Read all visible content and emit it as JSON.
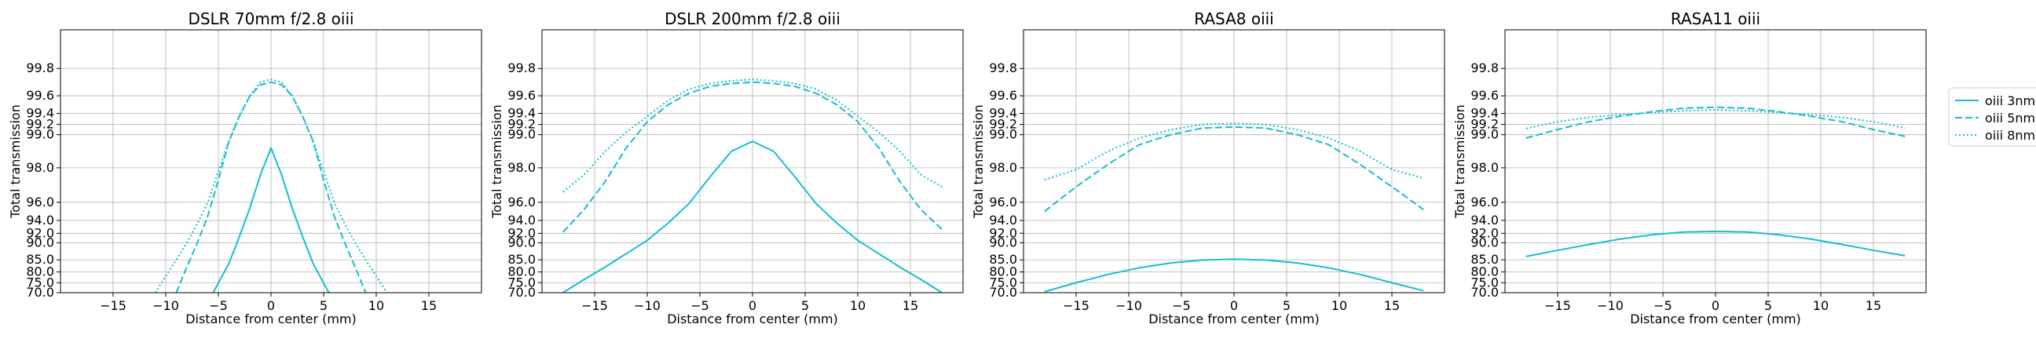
{
  "chart_data": [
    {
      "type": "line",
      "title": "DSLR 70mm f/2.8 oiii",
      "xlabel": "Distance from center (mm)",
      "ylabel": "Total transmission",
      "xlim": [
        -20,
        20
      ],
      "ylim": [
        70.0,
        100.0
      ],
      "xticks": [
        -15,
        -10,
        -5,
        0,
        5,
        10,
        15
      ],
      "yticks": [
        70.0,
        75.0,
        80.0,
        85.0,
        90.0,
        92.0,
        94.0,
        96.0,
        98.0,
        99.0,
        99.2,
        99.4,
        99.6,
        99.8
      ],
      "y_scale": "expanded toward 100 (tick spacing widens near 100)",
      "grid": true,
      "series": [
        {
          "name": "oiii 3nm",
          "style": "solid",
          "x": [
            -5.5,
            -4,
            -3,
            -2,
            -1,
            0,
            1,
            2,
            3,
            4,
            5.5
          ],
          "y": [
            70.0,
            83.5,
            91.3,
            95.4,
            97.6,
            98.6,
            97.6,
            95.4,
            91.3,
            83.5,
            70.0
          ]
        },
        {
          "name": "oiii 5nm",
          "style": "dashed",
          "x": [
            -9,
            -8,
            -7,
            -6,
            -5,
            -4,
            -3,
            -2,
            -1,
            0,
            1,
            2,
            3,
            4,
            5,
            6,
            7,
            8,
            9
          ],
          "y": [
            70.0,
            82.0,
            90.0,
            94.5,
            97.3,
            98.8,
            99.35,
            99.6,
            99.68,
            99.7,
            99.68,
            99.6,
            99.35,
            98.8,
            97.3,
            94.5,
            90.0,
            82.0,
            70.0
          ]
        },
        {
          "name": "oiii 8nm",
          "style": "dotted",
          "x": [
            -11,
            -10,
            -9,
            -8,
            -7,
            -6,
            -5,
            -4,
            -3,
            -2,
            -1,
            0,
            1,
            2,
            3,
            4,
            5,
            6,
            7,
            8,
            9,
            10,
            11
          ],
          "y": [
            70.0,
            78.0,
            85.0,
            90.0,
            93.5,
            96.0,
            97.8,
            98.8,
            99.35,
            99.6,
            99.7,
            99.72,
            99.7,
            99.6,
            99.35,
            98.8,
            97.8,
            96.0,
            93.5,
            90.0,
            85.0,
            78.0,
            70.0
          ]
        }
      ]
    },
    {
      "type": "line",
      "title": "DSLR 200mm f/2.8 oiii",
      "xlabel": "Distance from center (mm)",
      "ylabel": "Total transmission",
      "xlim": [
        -20,
        20
      ],
      "ylim": [
        70.0,
        100.0
      ],
      "xticks": [
        -15,
        -10,
        -5,
        0,
        5,
        10,
        15
      ],
      "yticks": [
        70.0,
        75.0,
        80.0,
        85.0,
        90.0,
        92.0,
        94.0,
        96.0,
        98.0,
        99.0,
        99.2,
        99.4,
        99.6,
        99.8
      ],
      "grid": true,
      "series": [
        {
          "name": "oiii 3nm",
          "style": "solid",
          "x": [
            -18,
            -16,
            -14,
            -12,
            -10,
            -8,
            -6,
            -4,
            -2,
            0,
            2,
            4,
            6,
            8,
            10,
            12,
            14,
            16,
            18
          ],
          "y": [
            70.0,
            76.5,
            82.0,
            86.8,
            90.5,
            93.6,
            95.9,
            97.5,
            98.5,
            98.8,
            98.5,
            97.5,
            95.9,
            93.6,
            90.5,
            86.8,
            82.0,
            76.5,
            70.0
          ]
        },
        {
          "name": "oiii 5nm",
          "style": "dashed",
          "x": [
            -18,
            -16,
            -14,
            -12,
            -10,
            -8,
            -6,
            -4,
            -2,
            0,
            2,
            4,
            6,
            8,
            10,
            12,
            14,
            16,
            18
          ],
          "y": [
            92.2,
            95.2,
            97.2,
            98.6,
            99.25,
            99.5,
            99.62,
            99.67,
            99.69,
            99.7,
            99.69,
            99.67,
            99.62,
            99.5,
            99.25,
            98.6,
            97.2,
            95.2,
            92.6
          ]
        },
        {
          "name": "oiii 8nm",
          "style": "dotted",
          "x": [
            -18,
            -16,
            -14,
            -12,
            -10,
            -8,
            -6,
            -4,
            -2,
            0,
            2,
            4,
            6,
            8,
            10,
            12,
            14,
            16,
            18
          ],
          "y": [
            96.6,
            97.6,
            98.5,
            99.05,
            99.35,
            99.55,
            99.65,
            99.69,
            99.71,
            99.72,
            99.71,
            99.69,
            99.65,
            99.55,
            99.35,
            99.05,
            98.5,
            97.6,
            96.9
          ]
        }
      ]
    },
    {
      "type": "line",
      "title": "RASA8 oiii",
      "xlabel": "Distance from center (mm)",
      "ylabel": "Total transmission",
      "xlim": [
        -20,
        20
      ],
      "ylim": [
        70.0,
        100.0
      ],
      "xticks": [
        -15,
        -10,
        -5,
        0,
        5,
        10,
        15
      ],
      "yticks": [
        70.0,
        75.0,
        80.0,
        85.0,
        90.0,
        92.0,
        94.0,
        96.0,
        98.0,
        99.0,
        99.2,
        99.4,
        99.6,
        99.8
      ],
      "grid": true,
      "series": [
        {
          "name": "oiii 3nm",
          "style": "solid",
          "x": [
            -18,
            -15,
            -12,
            -9,
            -6,
            -3,
            0,
            3,
            6,
            9,
            12,
            15,
            18
          ],
          "y": [
            70.5,
            75.0,
            78.8,
            81.7,
            83.7,
            84.9,
            85.2,
            84.9,
            83.7,
            81.7,
            78.8,
            75.0,
            71.0
          ]
        },
        {
          "name": "oiii 5nm",
          "style": "dashed",
          "x": [
            -18,
            -15,
            -12,
            -9,
            -6,
            -3,
            0,
            3,
            6,
            9,
            12,
            15,
            18
          ],
          "y": [
            95.0,
            96.9,
            98.1,
            98.7,
            99.0,
            99.13,
            99.15,
            99.13,
            99.0,
            98.7,
            98.1,
            96.9,
            95.2
          ]
        },
        {
          "name": "oiii 8nm",
          "style": "dotted",
          "x": [
            -18,
            -15,
            -12,
            -9,
            -6,
            -3,
            0,
            3,
            6,
            9,
            12,
            15,
            18
          ],
          "y": [
            97.3,
            97.9,
            98.5,
            98.9,
            99.1,
            99.2,
            99.22,
            99.2,
            99.1,
            98.9,
            98.5,
            97.9,
            97.4
          ]
        }
      ]
    },
    {
      "type": "line",
      "title": "RASA11 oiii",
      "xlabel": "Distance from center (mm)",
      "ylabel": "Total transmission",
      "xlim": [
        -20,
        20
      ],
      "ylim": [
        70.0,
        100.0
      ],
      "xticks": [
        -15,
        -10,
        -5,
        0,
        5,
        10,
        15
      ],
      "yticks": [
        70.0,
        75.0,
        80.0,
        85.0,
        90.0,
        92.0,
        94.0,
        96.0,
        98.0,
        99.0,
        99.2,
        99.4,
        99.6,
        99.8
      ],
      "grid": true,
      "series": [
        {
          "name": "oiii 3nm",
          "style": "solid",
          "x": [
            -18,
            -15,
            -12,
            -9,
            -6,
            -3,
            0,
            3,
            6,
            9,
            12,
            15,
            18
          ],
          "y": [
            86.0,
            87.8,
            89.5,
            90.8,
            91.7,
            92.2,
            92.3,
            92.2,
            91.7,
            90.8,
            89.5,
            87.8,
            86.2
          ]
        },
        {
          "name": "oiii 5nm",
          "style": "dashed",
          "x": [
            -18,
            -15,
            -12,
            -9,
            -6,
            -3,
            0,
            3,
            6,
            9,
            12,
            15,
            18
          ],
          "y": [
            98.9,
            99.1,
            99.25,
            99.35,
            99.42,
            99.46,
            99.47,
            99.46,
            99.42,
            99.35,
            99.25,
            99.1,
            98.95
          ]
        },
        {
          "name": "oiii 8nm",
          "style": "dotted",
          "x": [
            -18,
            -15,
            -12,
            -9,
            -6,
            -3,
            0,
            3,
            6,
            9,
            12,
            15,
            18
          ],
          "y": [
            99.12,
            99.25,
            99.33,
            99.38,
            99.41,
            99.43,
            99.44,
            99.43,
            99.41,
            99.38,
            99.33,
            99.25,
            99.13
          ]
        }
      ]
    }
  ],
  "legend": {
    "placement": "right",
    "entries": [
      "oiii 3nm",
      "oiii 5nm",
      "oiii 8nm"
    ]
  },
  "colors": {
    "series": "#17becf",
    "grid": "#b0b0b0",
    "axis": "#000000"
  }
}
